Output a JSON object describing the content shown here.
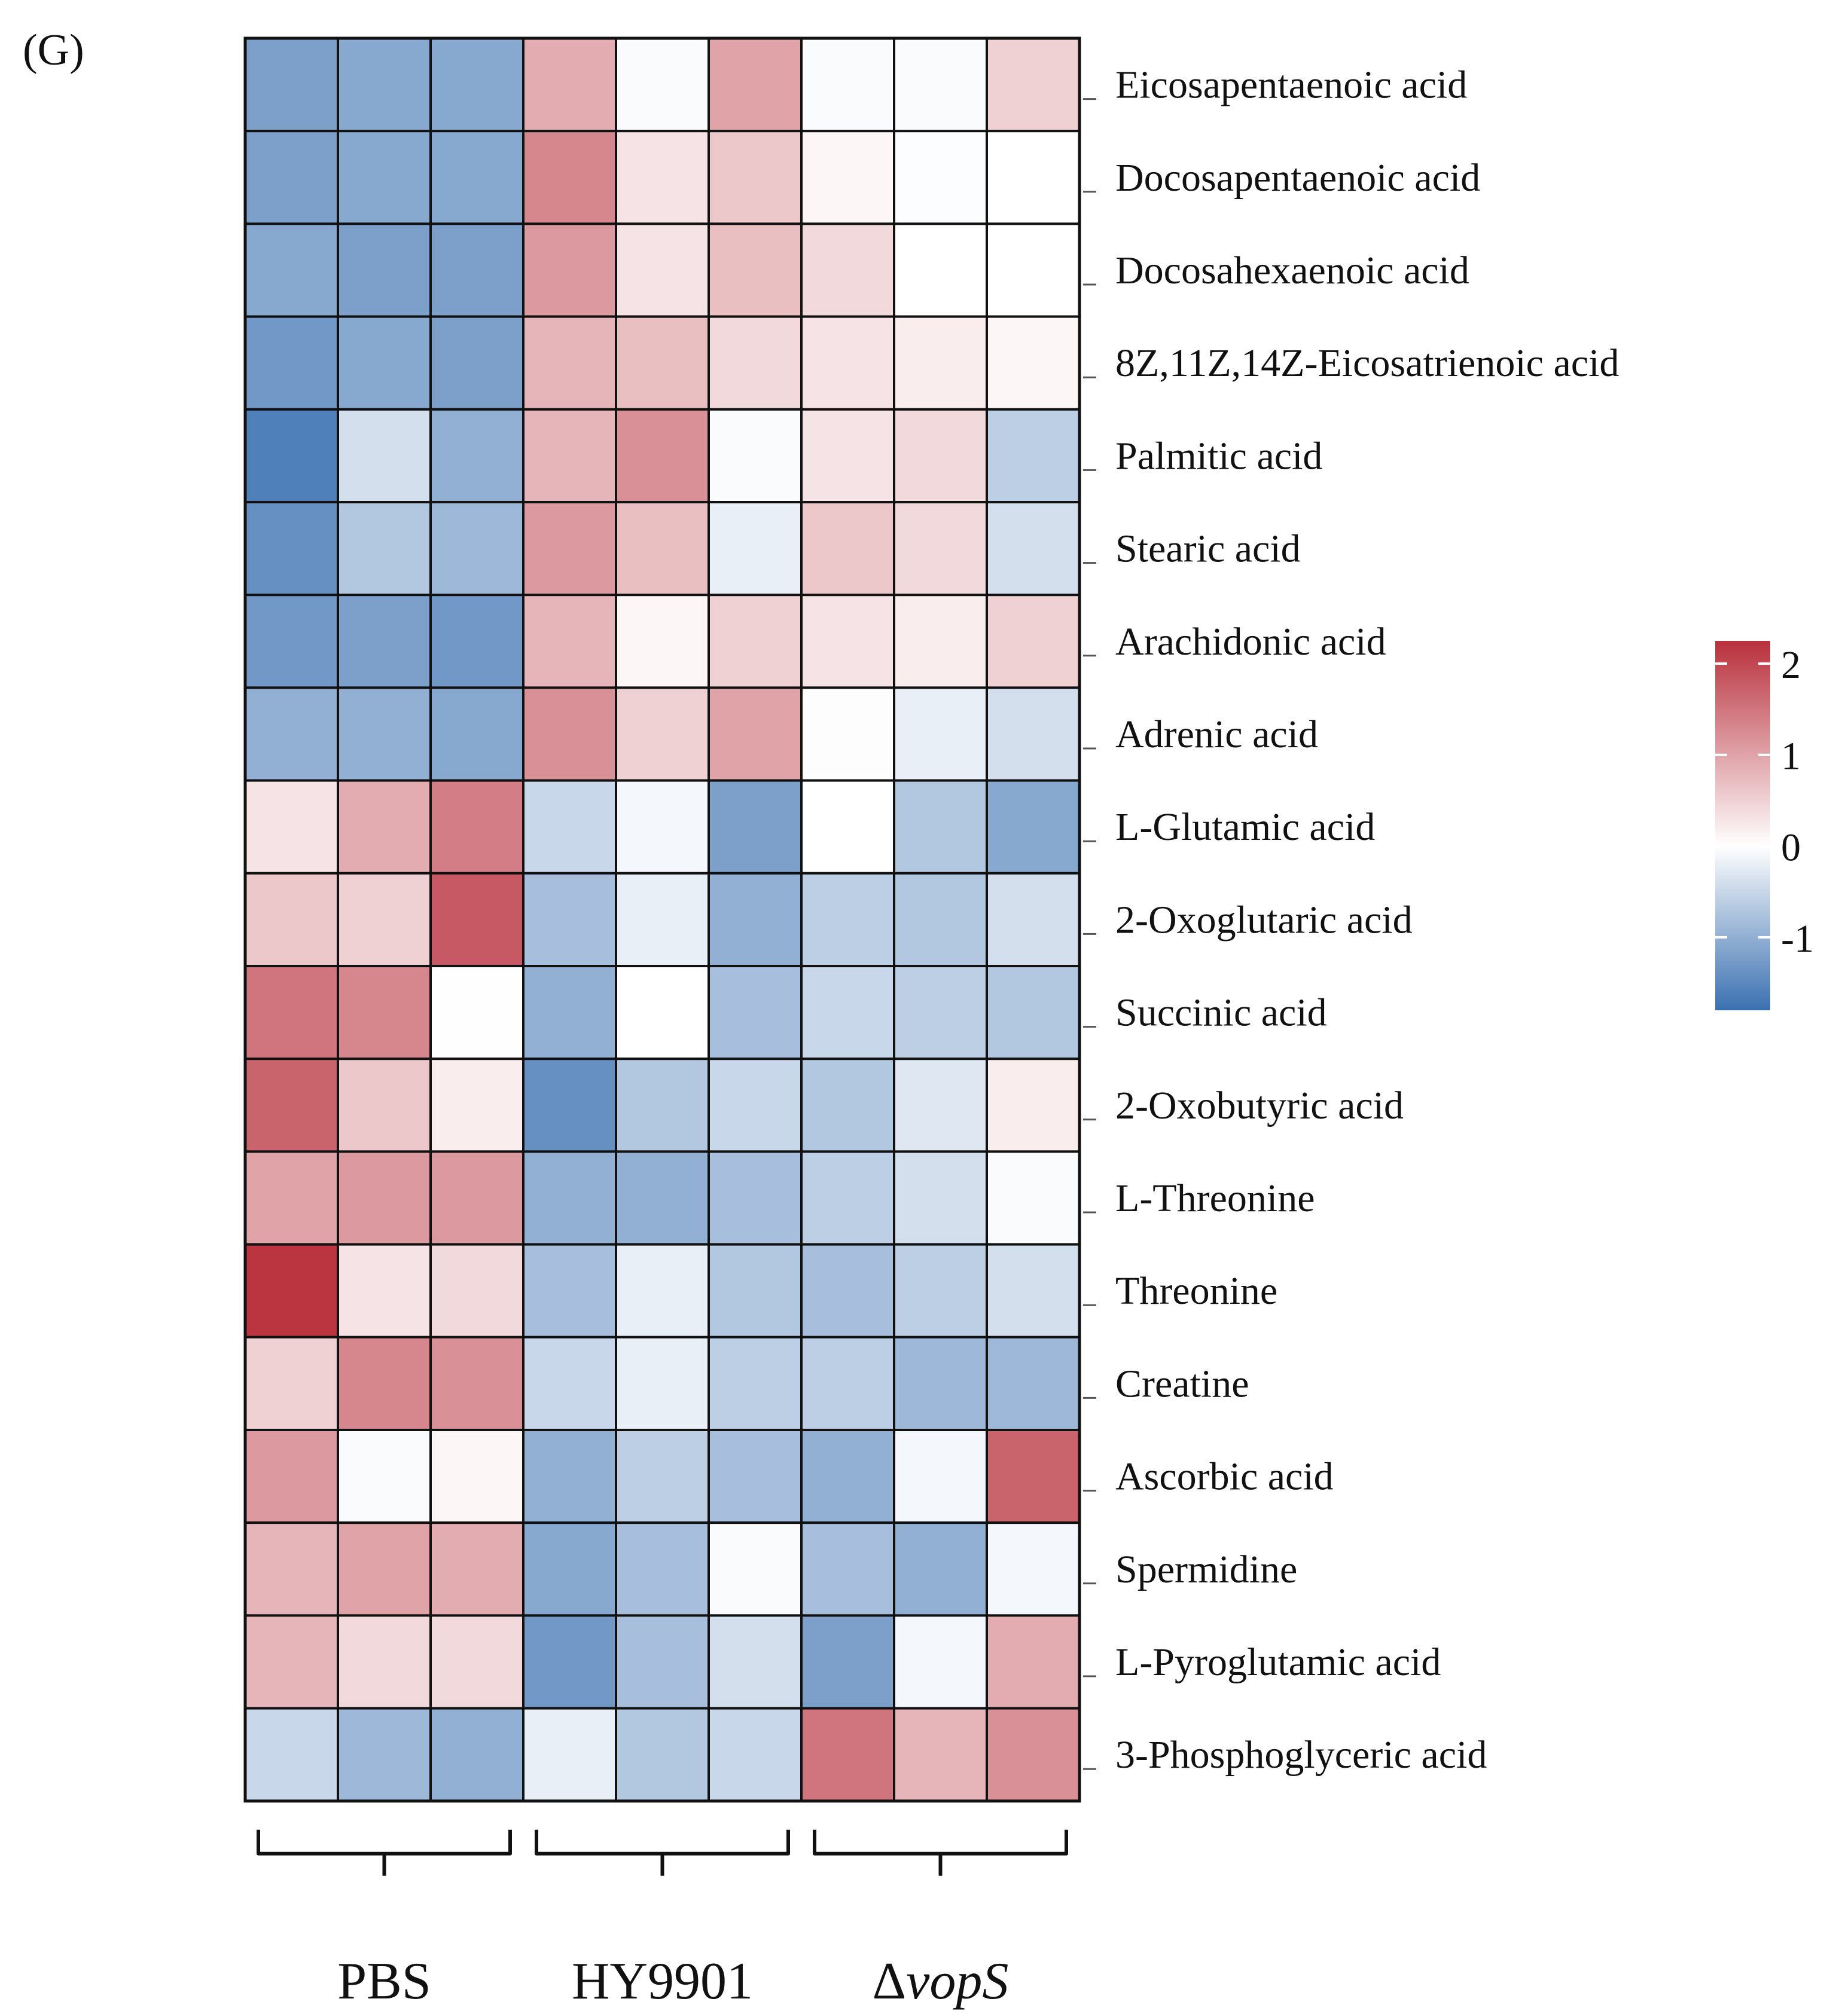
{
  "panel_label": "(G)",
  "chart_data": {
    "type": "heatmap",
    "title": "",
    "rows": [
      "Eicosapentaenoic acid",
      "Docosapentaenoic acid",
      "Docosahexaenoic acid",
      "8Z,11Z,14Z-Eicosatrienoic acid",
      "Palmitic acid",
      "Stearic acid",
      "Arachidonic acid",
      "Adrenic acid",
      "L-Glutamic acid",
      "2-Oxoglutaric acid",
      "Succinic acid",
      "2-Oxobutyric acid",
      "L-Threonine",
      "Threonine",
      "Creatine",
      "Ascorbic acid",
      "Spermidine",
      "L-Pyroglutamic acid",
      "3-Phosphoglyceric acid"
    ],
    "groups": [
      {
        "label": "PBS",
        "label_parts": [
          {
            "text": "PBS",
            "italic": false
          }
        ],
        "columns": 3
      },
      {
        "label": "HY9901",
        "label_parts": [
          {
            "text": "HY9901",
            "italic": false
          }
        ],
        "columns": 3
      },
      {
        "label": "ΔvopS",
        "label_parts": [
          {
            "text": "Δ",
            "italic": false
          },
          {
            "text": "vopS",
            "italic": true
          }
        ],
        "columns": 3
      }
    ],
    "values": [
      [
        -1.2,
        -1.1,
        -1.1,
        0.9,
        -0.05,
        1.0,
        -0.05,
        -0.05,
        0.5
      ],
      [
        -1.2,
        -1.1,
        -1.1,
        1.3,
        0.3,
        0.6,
        0.1,
        -0.03,
        0.0
      ],
      [
        -1.1,
        -1.2,
        -1.2,
        1.1,
        0.3,
        0.7,
        0.4,
        0.0,
        0.0
      ],
      [
        -1.3,
        -1.1,
        -1.2,
        0.8,
        0.7,
        0.4,
        0.3,
        0.2,
        0.1
      ],
      [
        -1.6,
        -0.4,
        -1.0,
        0.8,
        1.2,
        -0.05,
        0.3,
        0.4,
        -0.6
      ],
      [
        -1.4,
        -0.7,
        -0.9,
        1.1,
        0.7,
        -0.2,
        0.6,
        0.4,
        -0.4
      ],
      [
        -1.3,
        -1.2,
        -1.3,
        0.8,
        0.1,
        0.5,
        0.3,
        0.2,
        0.5
      ],
      [
        -1.0,
        -1.0,
        -1.1,
        1.2,
        0.5,
        1.0,
        0.02,
        -0.2,
        -0.4
      ],
      [
        0.3,
        0.9,
        1.4,
        -0.5,
        -0.1,
        -1.2,
        0.0,
        -0.7,
        -1.1
      ],
      [
        0.6,
        0.5,
        1.8,
        -0.8,
        -0.2,
        -1.0,
        -0.6,
        -0.7,
        -0.4
      ],
      [
        1.5,
        1.3,
        0.01,
        -1.0,
        0.0,
        -0.8,
        -0.5,
        -0.6,
        -0.7
      ],
      [
        1.7,
        0.6,
        0.2,
        -1.4,
        -0.7,
        -0.5,
        -0.7,
        -0.3,
        0.2
      ],
      [
        1.0,
        1.1,
        1.1,
        -1.0,
        -1.0,
        -0.8,
        -0.6,
        -0.4,
        -0.05
      ],
      [
        2.2,
        0.3,
        0.4,
        -0.8,
        -0.2,
        -0.7,
        -0.8,
        -0.6,
        -0.4
      ],
      [
        0.5,
        1.3,
        1.2,
        -0.5,
        -0.2,
        -0.6,
        -0.6,
        -0.9,
        -0.9
      ],
      [
        1.1,
        -0.05,
        0.1,
        -1.0,
        -0.6,
        -0.8,
        -1.0,
        -0.1,
        1.7
      ],
      [
        0.8,
        1.0,
        0.9,
        -1.1,
        -0.8,
        -0.05,
        -0.8,
        -1.0,
        -0.1
      ],
      [
        0.8,
        0.4,
        0.4,
        -1.3,
        -0.8,
        -0.4,
        -1.2,
        -0.1,
        0.9
      ],
      [
        -0.5,
        -0.9,
        -1.0,
        -0.2,
        -0.7,
        -0.5,
        1.5,
        0.8,
        1.2
      ]
    ],
    "colorbar": {
      "min": -1.8,
      "max": 2.25,
      "ticks": [
        2,
        1,
        0,
        -1
      ],
      "tick_labels": [
        "2",
        "1",
        "0",
        "-1"
      ],
      "colors": {
        "low": "#3a70b0",
        "mid": "#ffffff",
        "high": "#b8303c"
      }
    },
    "grid": true
  }
}
